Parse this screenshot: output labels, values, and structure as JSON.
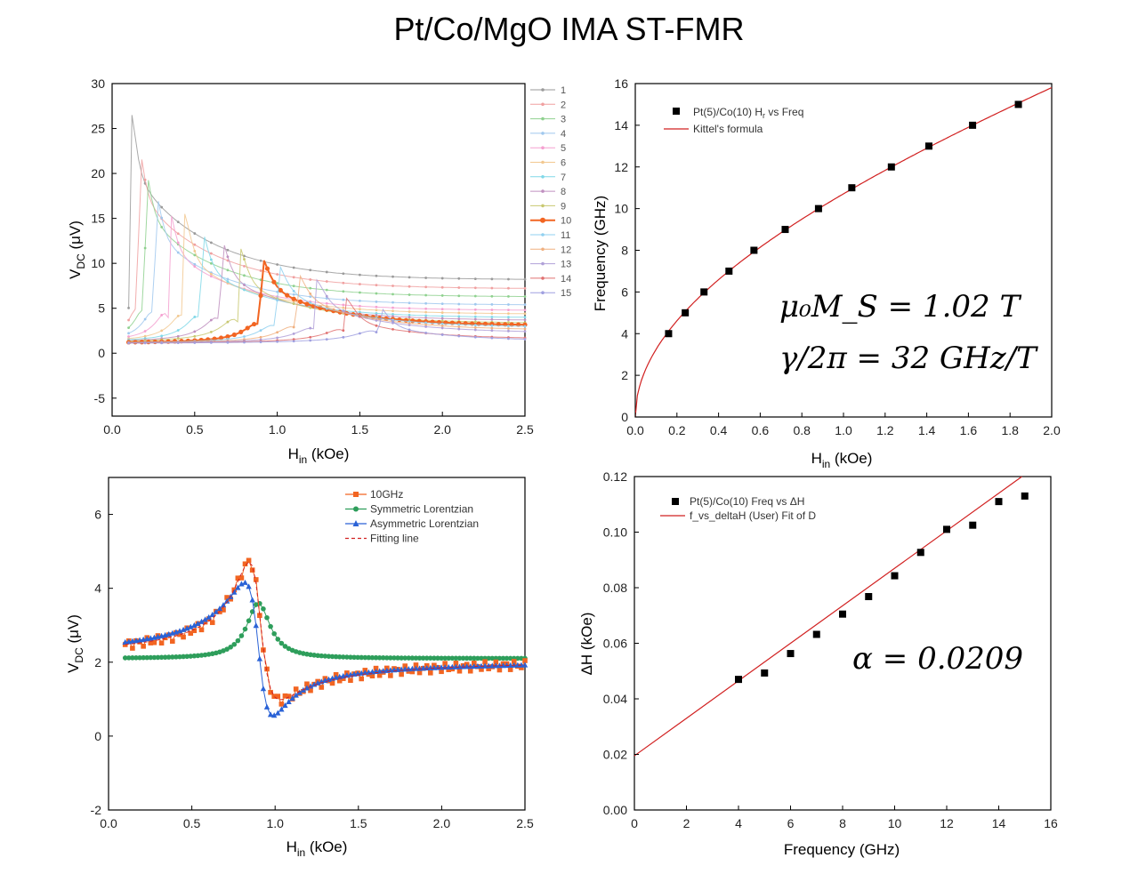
{
  "title": "Pt/Co/MgO IMA ST-FMR",
  "colors": {
    "orange": "#f26522",
    "green": "#2e9e5b",
    "blue": "#2a62d6",
    "red": "#d12020",
    "black": "#000000"
  },
  "chart_data": [
    {
      "type": "line",
      "id": "tl",
      "xlabel": "H",
      "xlabel_sub": "in",
      "xlabel_unit": " (kOe)",
      "ylabel": "V",
      "ylabel_sub": "DC",
      "ylabel_unit": " (μV)",
      "xlim": [
        0,
        2.5
      ],
      "ylim": [
        -7,
        30
      ],
      "xticks": [
        "0.0",
        "0.5",
        "1.0",
        "1.5",
        "2.0",
        "2.5"
      ],
      "yticks": [
        "30",
        "25",
        "20",
        "15",
        "10",
        "5",
        "0",
        "-5"
      ],
      "legend": [
        "1",
        "2",
        "3",
        "4",
        "5",
        "6",
        "7",
        "8",
        "9",
        "10",
        "11",
        "12",
        "13",
        "14",
        "15"
      ],
      "series_colors": [
        "#9a9a9a",
        "#f0a0a0",
        "#8fd18f",
        "#a0c8ee",
        "#f5a0d0",
        "#f2c890",
        "#80d8e8",
        "#c090c0",
        "#c8c870",
        "#f26522",
        "#90d0f0",
        "#f0b080",
        "#b0a0d8",
        "#e07070",
        "#a0a0e0"
      ],
      "resonances": [
        0.12,
        0.16,
        0.2,
        0.26,
        0.34,
        0.44,
        0.54,
        0.66,
        0.77,
        0.9,
        1.0,
        1.12,
        1.24,
        1.42,
        1.62
      ],
      "series_note": "15 frequency traces"
    },
    {
      "type": "scatter",
      "id": "tr",
      "xlabel": "H",
      "xlabel_sub": "in",
      "xlabel_unit": " (kOe)",
      "ylabel": "Frequency (GHz)",
      "xlim": [
        0,
        2.0
      ],
      "ylim": [
        0,
        16
      ],
      "xticks": [
        "0.0",
        "0.2",
        "0.4",
        "0.6",
        "0.8",
        "1.0",
        "1.2",
        "1.4",
        "1.6",
        "1.8",
        "2.0"
      ],
      "yticks": [
        "0",
        "2",
        "4",
        "6",
        "8",
        "10",
        "12",
        "14",
        "16"
      ],
      "legend": [
        {
          "label_pre": "Pt(5)/Co(10) H",
          "label_sub": "r",
          "label_post": " vs Freq",
          "marker": "square"
        },
        {
          "label_pre": "Kittel's formula",
          "label_sub": "",
          "label_post": "",
          "marker": "line"
        }
      ],
      "points": [
        [
          0.16,
          4
        ],
        [
          0.24,
          5
        ],
        [
          0.33,
          6
        ],
        [
          0.45,
          7
        ],
        [
          0.57,
          8
        ],
        [
          0.72,
          9
        ],
        [
          0.88,
          10
        ],
        [
          1.04,
          11
        ],
        [
          1.23,
          12
        ],
        [
          1.41,
          13
        ],
        [
          1.62,
          14
        ],
        [
          1.84,
          15
        ]
      ],
      "fit": {
        "Ms_T": 1.02,
        "gamma_GHz_per_T": 32
      },
      "annotations": [
        "μ₀M_S = 1.02 T",
        "γ/2π = 32 GHz/T"
      ]
    },
    {
      "type": "line",
      "id": "bl",
      "xlabel": "H",
      "xlabel_sub": "in",
      "xlabel_unit": " (kOe)",
      "ylabel": "V",
      "ylabel_sub": "DC",
      "ylabel_unit": " (μV)",
      "xlim": [
        0,
        2.5
      ],
      "ylim": [
        -2,
        7
      ],
      "xticks": [
        "0.0",
        "0.5",
        "1.0",
        "1.5",
        "2.0",
        "2.5"
      ],
      "yticks": [
        "6",
        "4",
        "2",
        "0",
        "-2"
      ],
      "legend": [
        "10GHz",
        "Symmetric Lorentzian",
        "Asymmetric Lorentzian",
        "Fitting line"
      ],
      "model": {
        "H0": 0.9,
        "dH": 0.085,
        "S": 1.5,
        "A": 3.6,
        "offset": 2.1
      }
    },
    {
      "type": "scatter",
      "id": "br",
      "xlabel": "Frequency (GHz)",
      "ylabel": "ΔH (kOe)",
      "xlim": [
        0,
        16
      ],
      "ylim": [
        0,
        0.12
      ],
      "xticks": [
        "0",
        "2",
        "4",
        "6",
        "8",
        "10",
        "12",
        "14",
        "16"
      ],
      "yticks": [
        "0.12",
        "0.10",
        "0.08",
        "0.06",
        "0.04",
        "0.02",
        "0.00"
      ],
      "legend": [
        "Pt(5)/Co(10) Freq vs ΔH",
        "f_vs_deltaH (User) Fit of D"
      ],
      "points": [
        [
          4,
          0.047
        ],
        [
          5,
          0.0493
        ],
        [
          6,
          0.0563
        ],
        [
          7,
          0.0632
        ],
        [
          8,
          0.0705
        ],
        [
          9,
          0.0768
        ],
        [
          10,
          0.0843
        ],
        [
          11,
          0.0927
        ],
        [
          12,
          0.101
        ],
        [
          13,
          0.1025
        ],
        [
          14,
          0.111
        ],
        [
          15,
          0.113
        ]
      ],
      "fit_line": {
        "intercept": 0.0195,
        "slope": 0.00675
      },
      "annotations": [
        "α = 0.0209"
      ]
    }
  ]
}
